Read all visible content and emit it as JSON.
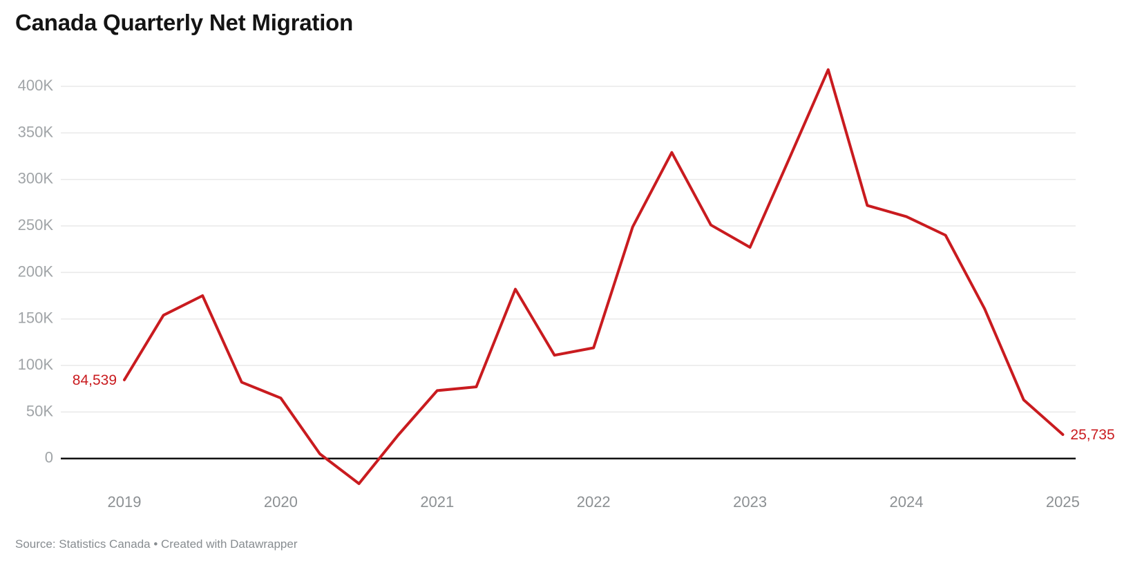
{
  "header": {
    "title": "Canada Quarterly Net Migration"
  },
  "footer": {
    "text": "Source: Statistics Canada • Created with Datawrapper"
  },
  "chart_data": {
    "type": "line",
    "title": "Canada Quarterly Net Migration",
    "series_name": "Quarterly net migration",
    "x": [
      "2019 Q1",
      "2019 Q2",
      "2019 Q3",
      "2019 Q4",
      "2020 Q1",
      "2020 Q2",
      "2020 Q3",
      "2020 Q4",
      "2021 Q1",
      "2021 Q2",
      "2021 Q3",
      "2021 Q4",
      "2022 Q1",
      "2022 Q2",
      "2022 Q3",
      "2022 Q4",
      "2023 Q1",
      "2023 Q2",
      "2023 Q3",
      "2023 Q4",
      "2024 Q1",
      "2024 Q2",
      "2024 Q3",
      "2024 Q4",
      "2025 Q1"
    ],
    "values": [
      84539,
      154000,
      175000,
      82000,
      65000,
      5000,
      -27000,
      25000,
      73000,
      77000,
      182000,
      111000,
      119000,
      249000,
      329000,
      251000,
      227000,
      322000,
      418000,
      272000,
      260000,
      240000,
      161000,
      63000,
      25735
    ],
    "x_tick_labels": [
      "2019",
      "2020",
      "2021",
      "2022",
      "2023",
      "2024",
      "2025"
    ],
    "y_ticks": [
      {
        "label": "400K",
        "value": 400000
      },
      {
        "label": "350K",
        "value": 350000
      },
      {
        "label": "300K",
        "value": 300000
      },
      {
        "label": "250K",
        "value": 250000
      },
      {
        "label": "200K",
        "value": 200000
      },
      {
        "label": "150K",
        "value": 150000
      },
      {
        "label": "100K",
        "value": 100000
      },
      {
        "label": "50K",
        "value": 50000
      },
      {
        "label": "0",
        "value": 0
      }
    ],
    "ylim": [
      -40000,
      430000
    ],
    "grid": "horizontal",
    "legend": "none",
    "line_color": "#c91b1f",
    "annotations": {
      "first_point_label": "84,539",
      "last_point_label": "25,735"
    }
  }
}
